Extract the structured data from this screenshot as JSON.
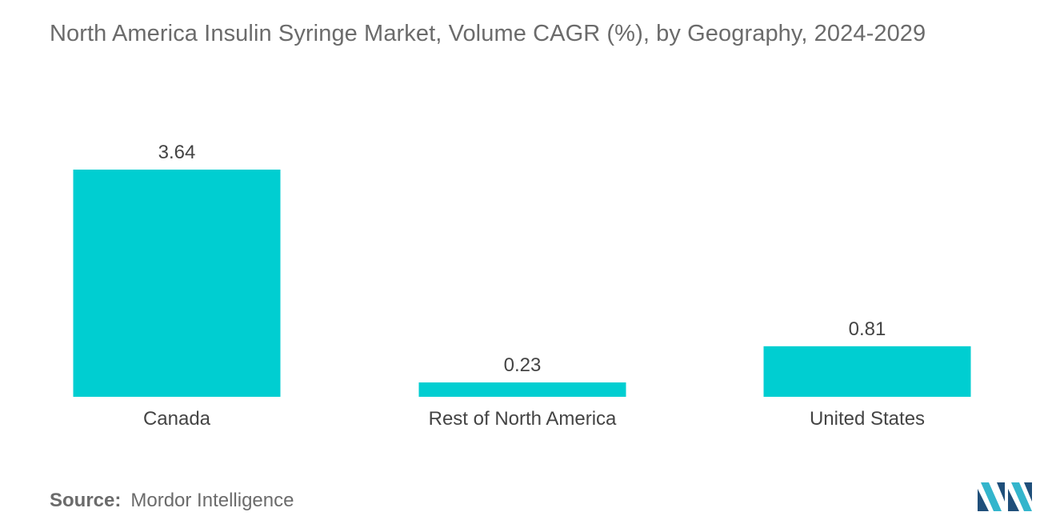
{
  "title": "North America Insulin Syringe Market, Volume CAGR (%), by Geography, 2024-2029",
  "source_label": "Source:",
  "source_value": "Mordor Intelligence",
  "logo_icon": "mordor-intelligence-logo-icon",
  "colors": {
    "bar": "#00ced1",
    "text": "#444444",
    "muted": "#6b6b6b",
    "logo_dark": "#1f4f7a",
    "logo_light": "#33b5cc"
  },
  "chart_data": {
    "type": "bar",
    "categories": [
      "Canada",
      "Rest of North America",
      "United States"
    ],
    "values": [
      3.64,
      0.23,
      0.81
    ],
    "value_labels": [
      "3.64",
      "0.23",
      "0.81"
    ],
    "title": "North America Insulin Syringe Market, Volume CAGR (%), by Geography, 2024-2029",
    "ylim": [
      0,
      3.64
    ],
    "grid": false,
    "legend": "none"
  }
}
